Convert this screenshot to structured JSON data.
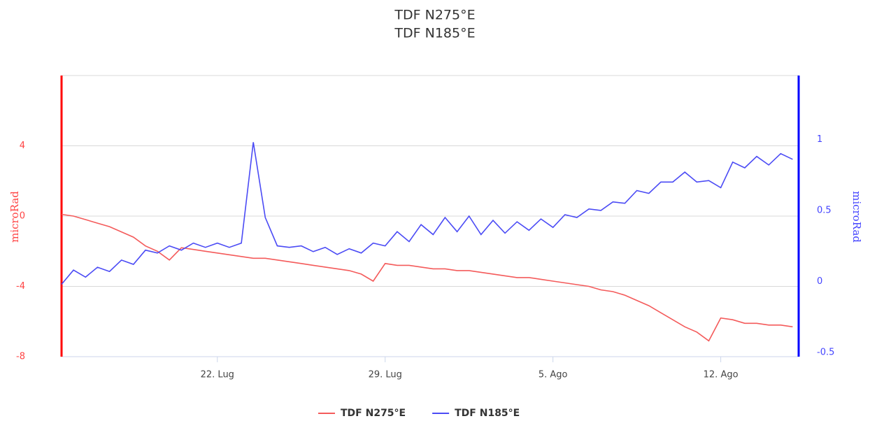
{
  "chart_data": {
    "type": "line",
    "title": "TDF N275°E",
    "subtitle": "TDF N185°E",
    "y_label": "microRad",
    "y2_label": "microRad",
    "x": [
      15.5,
      16,
      16.5,
      17,
      17.5,
      18,
      18.5,
      19,
      19.5,
      20,
      20.5,
      21,
      21.5,
      22,
      22.5,
      23,
      23.5,
      24,
      24.5,
      25,
      25.5,
      26,
      26.5,
      27,
      27.5,
      28,
      28.5,
      29,
      29.5,
      30,
      30.5,
      31,
      31.5,
      32,
      32.5,
      33,
      33.5,
      34,
      34.5,
      35,
      35.5,
      36,
      36.5,
      37,
      37.5,
      38,
      38.5,
      39,
      39.5,
      40,
      40.5,
      41,
      41.5,
      42,
      42.5,
      43,
      43.5,
      44,
      44.5,
      45,
      45.5,
      46
    ],
    "xlim": [
      15.5,
      46.25
    ],
    "xticks": [
      {
        "value": 22,
        "label": "22. Lug"
      },
      {
        "value": 29,
        "label": "29. Lug"
      },
      {
        "value": 36,
        "label": "5. Ago"
      },
      {
        "value": 43,
        "label": "12. Ago"
      }
    ],
    "ylim": [
      -8,
      8
    ],
    "yticks": [
      -8,
      -4,
      0,
      4
    ],
    "y2lim": [
      -0.53,
      1.45
    ],
    "y2ticks": [
      -0.5,
      0,
      0.5,
      1
    ],
    "grid": true,
    "legend": "bottom",
    "series": [
      {
        "name": "TDF N275°E",
        "color": "#f45b5b",
        "axis": "y",
        "values": [
          0.1,
          0.0,
          -0.2,
          -0.4,
          -0.6,
          -0.9,
          -1.2,
          -1.7,
          -2.0,
          -2.5,
          -1.8,
          -1.9,
          -2.0,
          -2.1,
          -2.2,
          -2.3,
          -2.4,
          -2.4,
          -2.5,
          -2.6,
          -2.7,
          -2.8,
          -2.9,
          -3.0,
          -3.1,
          -3.3,
          -3.7,
          -2.7,
          -2.8,
          -2.8,
          -2.9,
          -3.0,
          -3.0,
          -3.1,
          -3.1,
          -3.2,
          -3.3,
          -3.4,
          -3.5,
          -3.5,
          -3.6,
          -3.7,
          -3.8,
          -3.9,
          -4.0,
          -4.2,
          -4.3,
          -4.5,
          -4.8,
          -5.1,
          -5.5,
          -5.9,
          -6.3,
          -6.6,
          -7.1,
          -5.8,
          -5.9,
          -6.1,
          -6.1,
          -6.2,
          -6.2,
          -6.3
        ]
      },
      {
        "name": "TDF N185°E",
        "color": "#4b4bf5",
        "axis": "y2",
        "values": [
          -0.02,
          0.08,
          0.03,
          0.1,
          0.07,
          0.15,
          0.12,
          0.22,
          0.2,
          0.25,
          0.22,
          0.27,
          0.24,
          0.27,
          0.24,
          0.27,
          0.98,
          0.45,
          0.25,
          0.24,
          0.25,
          0.21,
          0.24,
          0.19,
          0.23,
          0.2,
          0.27,
          0.25,
          0.35,
          0.28,
          0.4,
          0.33,
          0.45,
          0.35,
          0.46,
          0.33,
          0.43,
          0.34,
          0.42,
          0.36,
          0.44,
          0.38,
          0.47,
          0.45,
          0.51,
          0.5,
          0.56,
          0.55,
          0.64,
          0.62,
          0.7,
          0.7,
          0.77,
          0.7,
          0.71,
          0.66,
          0.84,
          0.8,
          0.88,
          0.82,
          0.9,
          0.86
        ]
      }
    ]
  }
}
